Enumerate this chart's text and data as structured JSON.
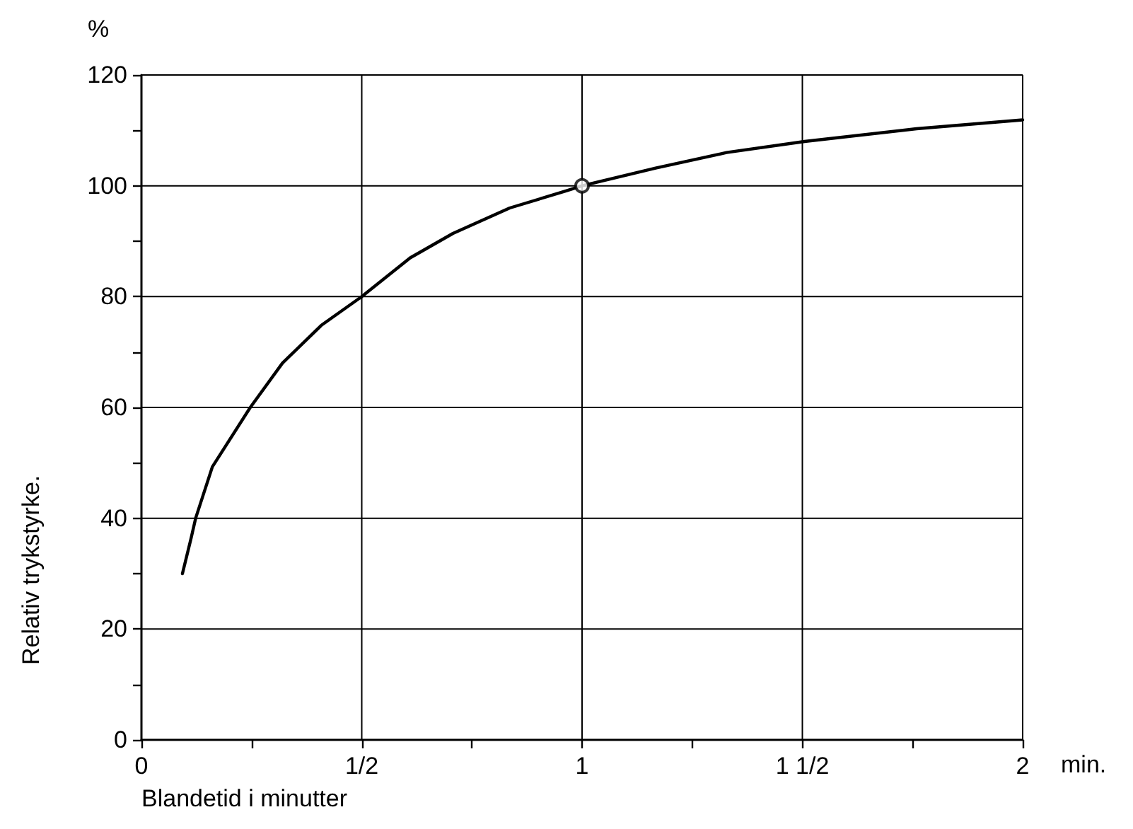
{
  "chart_data": {
    "type": "line",
    "xlabel": "Blandetid i minutter",
    "ylabel": "Relativ trykstyrke.",
    "annotations": [
      "%",
      "min."
    ],
    "series": [
      {
        "type": "line",
        "color": "#000000",
        "marker": "none",
        "x": [
          0.093,
          0.113,
          0.123,
          0.161,
          0.247,
          0.32,
          0.408,
          0.5,
          0.61,
          0.707,
          0.836,
          0.965,
          1,
          1.167,
          1.328,
          1.505,
          1.759,
          2.0
        ],
        "values": [
          30,
          36.5,
          40,
          49.3,
          60,
          68,
          74.8,
          80,
          87,
          91.4,
          96,
          99.1,
          100,
          103.2,
          106,
          108,
          110.3,
          111.9
        ]
      },
      {
        "type": "scatter",
        "color": "#000000",
        "marker": "circle",
        "x": [
          1
        ],
        "values": [
          100
        ]
      }
    ],
    "xlim": [
      0,
      2
    ],
    "xticks": [
      {
        "value": 0,
        "label": "0"
      },
      {
        "value": 0.25,
        "label": null
      },
      {
        "value": 0.5,
        "label": "1/2"
      },
      {
        "value": 0.75,
        "label": null
      },
      {
        "value": 1,
        "label": "1"
      },
      {
        "value": 1.25,
        "label": null
      },
      {
        "value": 1.5,
        "label": "1 1/2"
      },
      {
        "value": 1.75,
        "label": null
      },
      {
        "value": 2,
        "label": "2"
      }
    ],
    "ylim": [
      0,
      120
    ],
    "yticks": [
      0,
      {
        "value": 10,
        "label": null
      },
      20,
      {
        "value": 30,
        "label": null
      },
      40,
      {
        "value": 50,
        "label": null
      },
      60,
      {
        "value": 70,
        "label": null
      },
      80,
      {
        "value": 90,
        "label": null
      },
      100,
      {
        "value": 110,
        "label": null
      },
      120
    ],
    "grid": true,
    "line_style": "solid"
  }
}
